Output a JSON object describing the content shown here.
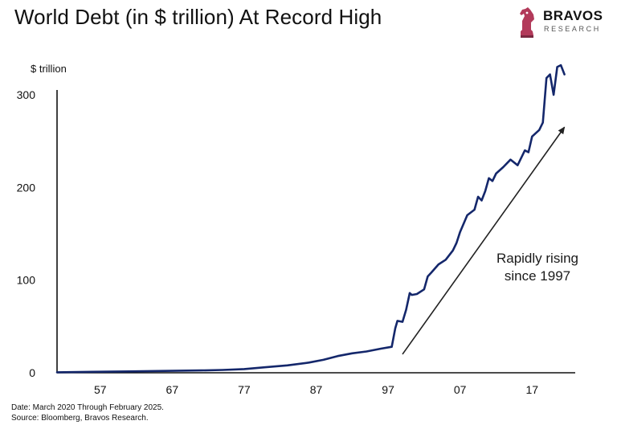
{
  "title": "World Debt (in $ trillion) At Record High",
  "logo": {
    "name": "BRAVOS",
    "sub": "RESEARCH",
    "icon": "knight-chess-icon"
  },
  "footer": {
    "line1": "Date: March 2020 Through February 2025.",
    "line2": "Source: Bloomberg, Bravos Research."
  },
  "colors": {
    "line": "#14276b",
    "axis": "#111111",
    "arrow": "#222222"
  },
  "chart_data": {
    "type": "line",
    "title": "World Debt (in $ trillion) At Record High",
    "ylabel": "$ trillion",
    "xlabel": "",
    "ylim": [
      0,
      300
    ],
    "xlim": [
      1951,
      2023
    ],
    "y_ticks": [
      0,
      100,
      200,
      300
    ],
    "x_ticks": [
      {
        "value": 1957,
        "label": "57"
      },
      {
        "value": 1967,
        "label": "67"
      },
      {
        "value": 1977,
        "label": "77"
      },
      {
        "value": 1987,
        "label": "87"
      },
      {
        "value": 1997,
        "label": "97"
      },
      {
        "value": 2007,
        "label": "07"
      },
      {
        "value": 2017,
        "label": "17"
      }
    ],
    "grid": false,
    "legend": "none",
    "annotation": {
      "text_lines": [
        "Rapidly rising",
        "since 1997"
      ],
      "arrow_from": [
        1999,
        20
      ],
      "arrow_to": [
        2021.5,
        265
      ]
    },
    "series": [
      {
        "x": [
          1951,
          1956,
          1961,
          1966,
          1971,
          1974,
          1977,
          1980,
          1983,
          1986,
          1988,
          1990,
          1992,
          1994,
          1996,
          1997.5,
          1998,
          1998.3,
          1999,
          1999.5,
          2000,
          2000.3,
          2001,
          2002,
          2002.5,
          2003,
          2004,
          2005,
          2006,
          2006.5,
          2007,
          2008,
          2009,
          2009.5,
          2010,
          2010.5,
          2011,
          2011.5,
          2012,
          2013,
          2014,
          2015,
          2016,
          2016.5,
          2017,
          2018,
          2018.5,
          2019,
          2019.5,
          2020,
          2020.5,
          2021,
          2021.5
        ],
        "y": [
          0.5,
          1,
          1.5,
          2,
          2.5,
          3,
          4,
          6,
          8,
          11,
          14,
          18,
          21,
          23,
          26,
          28,
          48,
          56,
          55,
          68,
          86,
          84,
          85,
          90,
          104,
          108,
          117,
          122,
          132,
          140,
          152,
          170,
          176,
          190,
          186,
          196,
          210,
          207,
          215,
          222,
          230,
          224,
          240,
          238,
          255,
          262,
          270,
          318,
          322,
          300,
          330,
          332,
          322
        ]
      }
    ]
  }
}
